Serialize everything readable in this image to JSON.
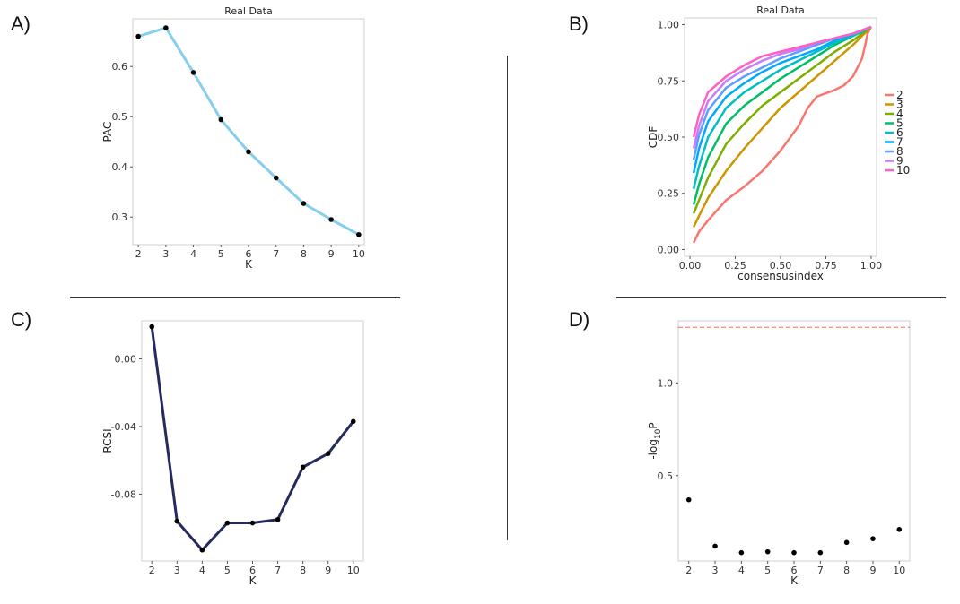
{
  "panels": {
    "a": "A)",
    "b": "B)",
    "c": "C)",
    "d": "D)"
  },
  "chart_data": [
    {
      "id": "A",
      "type": "line",
      "title": "Real Data",
      "xlabel": "K",
      "ylabel": "PAC",
      "x": [
        2,
        3,
        4,
        5,
        6,
        7,
        8,
        9,
        10
      ],
      "y": [
        0.66,
        0.677,
        0.588,
        0.494,
        0.43,
        0.378,
        0.327,
        0.295,
        0.265
      ],
      "xlim": [
        1.8,
        10.2
      ],
      "ylim": [
        0.245,
        0.695
      ],
      "yticks": [
        0.3,
        0.4,
        0.5,
        0.6
      ],
      "ytick_labels": [
        "0.3",
        "0.4",
        "0.5",
        "0.6"
      ],
      "line_color": "#87CEEB",
      "point_color": "#000000"
    },
    {
      "id": "B",
      "type": "line",
      "title": "Real Data",
      "xlabel": "consensusindex",
      "ylabel": "CDF",
      "xlim": [
        -0.03,
        1.03
      ],
      "ylim": [
        -0.03,
        1.03
      ],
      "xticks": [
        0,
        0.25,
        0.5,
        0.75,
        1
      ],
      "xtick_labels": [
        "0.00",
        "0.25",
        "0.50",
        "0.75",
        "1.00"
      ],
      "yticks": [
        0,
        0.25,
        0.5,
        0.75,
        1
      ],
      "ytick_labels": [
        "0.00",
        "0.25",
        "0.50",
        "0.75",
        "1.00"
      ],
      "series": [
        {
          "name": "2",
          "color": "#F8766D",
          "x": [
            0.02,
            0.05,
            0.1,
            0.2,
            0.3,
            0.4,
            0.5,
            0.6,
            0.65,
            0.7,
            0.8,
            0.85,
            0.9,
            0.95,
            0.97,
            0.98,
            1.0
          ],
          "y": [
            0.03,
            0.08,
            0.13,
            0.22,
            0.28,
            0.35,
            0.44,
            0.55,
            0.63,
            0.68,
            0.71,
            0.73,
            0.77,
            0.85,
            0.92,
            0.96,
            0.99
          ]
        },
        {
          "name": "3",
          "color": "#CD9600",
          "x": [
            0.02,
            0.05,
            0.1,
            0.2,
            0.3,
            0.4,
            0.5,
            0.6,
            0.7,
            0.8,
            0.9,
            1.0
          ],
          "y": [
            0.1,
            0.15,
            0.23,
            0.35,
            0.45,
            0.54,
            0.63,
            0.7,
            0.77,
            0.84,
            0.91,
            0.99
          ]
        },
        {
          "name": "4",
          "color": "#7CAE00",
          "x": [
            0.02,
            0.05,
            0.1,
            0.2,
            0.3,
            0.4,
            0.5,
            0.6,
            0.7,
            0.8,
            0.9,
            1.0
          ],
          "y": [
            0.16,
            0.22,
            0.32,
            0.47,
            0.56,
            0.64,
            0.7,
            0.76,
            0.82,
            0.88,
            0.93,
            0.99
          ]
        },
        {
          "name": "5",
          "color": "#00BE67",
          "x": [
            0.02,
            0.05,
            0.1,
            0.2,
            0.3,
            0.4,
            0.5,
            0.6,
            0.7,
            0.8,
            0.9,
            1.0
          ],
          "y": [
            0.2,
            0.29,
            0.41,
            0.56,
            0.64,
            0.7,
            0.76,
            0.81,
            0.86,
            0.91,
            0.95,
            0.99
          ]
        },
        {
          "name": "6",
          "color": "#00BFC4",
          "x": [
            0.02,
            0.05,
            0.1,
            0.2,
            0.3,
            0.4,
            0.5,
            0.6,
            0.7,
            0.8,
            0.9,
            1.0
          ],
          "y": [
            0.27,
            0.37,
            0.5,
            0.63,
            0.7,
            0.75,
            0.8,
            0.84,
            0.88,
            0.92,
            0.95,
            0.99
          ]
        },
        {
          "name": "7",
          "color": "#00A9FF",
          "x": [
            0.02,
            0.05,
            0.1,
            0.2,
            0.3,
            0.4,
            0.5,
            0.6,
            0.7,
            0.8,
            0.9,
            1.0
          ],
          "y": [
            0.34,
            0.45,
            0.57,
            0.68,
            0.74,
            0.79,
            0.83,
            0.86,
            0.89,
            0.93,
            0.96,
            0.99
          ]
        },
        {
          "name": "8",
          "color": "#619CFF",
          "x": [
            0.02,
            0.05,
            0.1,
            0.2,
            0.3,
            0.4,
            0.5,
            0.6,
            0.7,
            0.8,
            0.9,
            1.0
          ],
          "y": [
            0.4,
            0.51,
            0.62,
            0.72,
            0.77,
            0.81,
            0.85,
            0.88,
            0.91,
            0.94,
            0.96,
            0.99
          ]
        },
        {
          "name": "9",
          "color": "#C77CFF",
          "x": [
            0.02,
            0.05,
            0.1,
            0.2,
            0.3,
            0.4,
            0.5,
            0.6,
            0.7,
            0.8,
            0.9,
            1.0
          ],
          "y": [
            0.45,
            0.55,
            0.66,
            0.75,
            0.8,
            0.84,
            0.87,
            0.89,
            0.92,
            0.94,
            0.96,
            0.99
          ]
        },
        {
          "name": "10",
          "color": "#FF61C3",
          "x": [
            0.02,
            0.05,
            0.1,
            0.2,
            0.3,
            0.4,
            0.5,
            0.6,
            0.7,
            0.8,
            0.9,
            1.0
          ],
          "y": [
            0.5,
            0.6,
            0.7,
            0.77,
            0.82,
            0.86,
            0.88,
            0.9,
            0.92,
            0.94,
            0.96,
            0.99
          ]
        }
      ]
    },
    {
      "id": "C",
      "type": "line",
      "title": "",
      "xlabel": "K",
      "ylabel": "RCSI",
      "x": [
        2,
        3,
        4,
        5,
        6,
        7,
        8,
        9,
        10
      ],
      "y": [
        0.019,
        -0.096,
        -0.113,
        -0.097,
        -0.097,
        -0.095,
        -0.064,
        -0.056,
        -0.037
      ],
      "xlim": [
        1.6,
        10.4
      ],
      "ylim": [
        -0.1195,
        0.0225
      ],
      "yticks": [
        0.0,
        -0.04,
        -0.08
      ],
      "ytick_labels": [
        "0.00",
        "-0.04",
        "-0.08"
      ],
      "line_color": "#252B5E",
      "point_color": "#000000"
    },
    {
      "id": "D",
      "type": "scatter",
      "title": "",
      "xlabel": "K",
      "ylabel": "-log10P",
      "ylabel_parts": {
        "pre": "-log",
        "sub": "10",
        "post": "P"
      },
      "x": [
        2,
        3,
        4,
        5,
        6,
        7,
        8,
        9,
        10
      ],
      "y": [
        0.37,
        0.12,
        0.085,
        0.09,
        0.085,
        0.085,
        0.14,
        0.16,
        0.21
      ],
      "xlim": [
        1.6,
        10.4
      ],
      "ylim": [
        0.04,
        1.335
      ],
      "yticks": [
        0.5,
        1.0
      ],
      "ytick_labels": [
        "0.5",
        "1.0"
      ],
      "threshold": 1.3,
      "threshold_color": "#F26B4B"
    }
  ]
}
